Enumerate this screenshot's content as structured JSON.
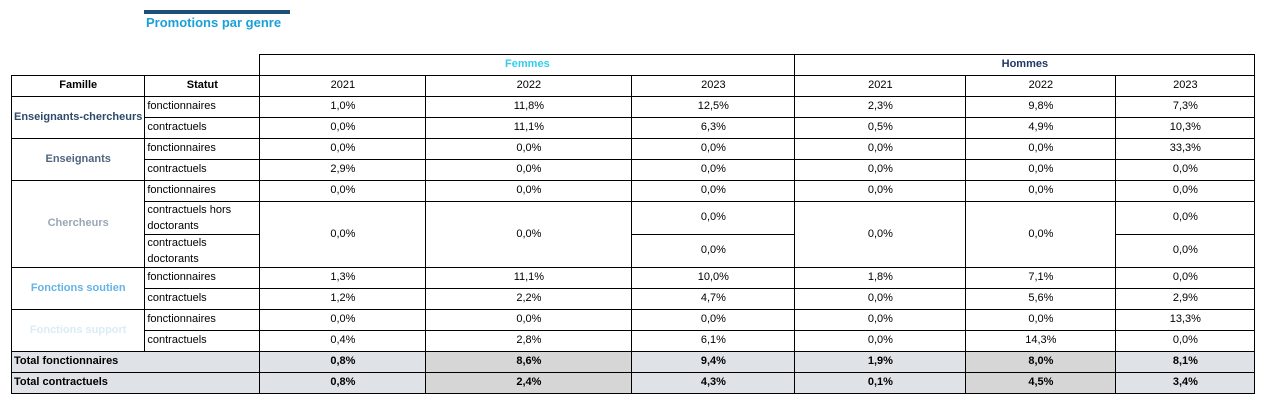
{
  "title": "Promotions par genre",
  "groups": {
    "femmes": "Femmes",
    "hommes": "Hommes"
  },
  "colors": {
    "femmes": "#33ccee",
    "hommes": "#1f3864",
    "enseignants_chercheurs": "#2e4a6b",
    "enseignants": "#50657f",
    "chercheurs": "#9aa7b5",
    "fonctions_soutien": "#64b4e8",
    "fonctions_support": "#d9ecf7",
    "title": "#1aa0d8"
  },
  "headers": {
    "famille": "Famille",
    "statut": "Statut",
    "years": [
      "2021",
      "2022",
      "2023",
      "2021",
      "2022",
      "2023"
    ]
  },
  "rows": {
    "ec_fonc": {
      "statut": "fonctionnaires",
      "values": [
        "1,0%",
        "11,8%",
        "12,5%",
        "2,3%",
        "9,8%",
        "7,3%"
      ]
    },
    "ec_cont": {
      "statut": "contractuels",
      "values": [
        "0,0%",
        "11,1%",
        "6,3%",
        "0,5%",
        "4,9%",
        "10,3%"
      ]
    },
    "en_fonc": {
      "statut": "fonctionnaires",
      "values": [
        "0,0%",
        "0,0%",
        "0,0%",
        "0,0%",
        "0,0%",
        "33,3%"
      ]
    },
    "en_cont": {
      "statut": "contractuels",
      "values": [
        "2,9%",
        "0,0%",
        "0,0%",
        "0,0%",
        "0,0%",
        "0,0%"
      ]
    },
    "ch_fonc": {
      "statut": "fonctionnaires",
      "values": [
        "0,0%",
        "0,0%",
        "0,0%",
        "0,0%",
        "0,0%",
        "0,0%"
      ]
    },
    "ch_hors": {
      "statut": "contractuels hors doctorants"
    },
    "ch_doct": {
      "statut": "contractuels doctorants"
    },
    "ch_merged": {
      "f2021": "0,0%",
      "f2022": "0,0%",
      "f2023_hors": "0,0%",
      "f2023_doct": "0,0%",
      "h2021": "0,0%",
      "h2022": "0,0%",
      "h2023_hors": "0,0%",
      "h2023_doct": "0,0%"
    },
    "fs_fonc": {
      "statut": "fonctionnaires",
      "values": [
        "1,3%",
        "11,1%",
        "10,0%",
        "1,8%",
        "7,1%",
        "0,0%"
      ]
    },
    "fs_cont": {
      "statut": "contractuels",
      "values": [
        "1,2%",
        "2,2%",
        "4,7%",
        "0,0%",
        "5,6%",
        "2,9%"
      ]
    },
    "sp_fonc": {
      "statut": "fonctionnaires",
      "values": [
        "0,0%",
        "0,0%",
        "0,0%",
        "0,0%",
        "0,0%",
        "13,3%"
      ]
    },
    "sp_cont": {
      "statut": "contractuels",
      "values": [
        "0,4%",
        "2,8%",
        "6,1%",
        "0,0%",
        "14,3%",
        "0,0%"
      ]
    }
  },
  "familles": {
    "ec": "Enseignants-chercheurs",
    "en": "Enseignants",
    "ch": "Chercheurs",
    "fs": "Fonctions soutien",
    "sp": "Fonctions support"
  },
  "totals": {
    "fonctionnaires": {
      "label": "Total fonctionnaires",
      "values": [
        "0,8%",
        "8,6%",
        "9,4%",
        "1,9%",
        "8,0%",
        "8,1%"
      ]
    },
    "contractuels": {
      "label": "Total contractuels",
      "values": [
        "0,8%",
        "2,4%",
        "4,3%",
        "0,1%",
        "4,5%",
        "3,4%"
      ]
    }
  }
}
